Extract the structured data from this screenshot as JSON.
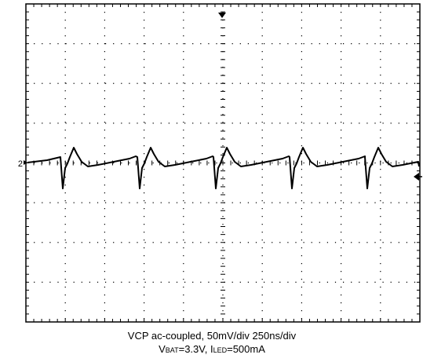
{
  "screen": {
    "channel_marker": "2"
  },
  "caption": {
    "line1": "VCP ac-coupled, 50mV/div  250ns/div",
    "line2": [
      "V",
      "BAT",
      "=3.3V, I",
      "LED",
      "=500mA"
    ]
  }
}
